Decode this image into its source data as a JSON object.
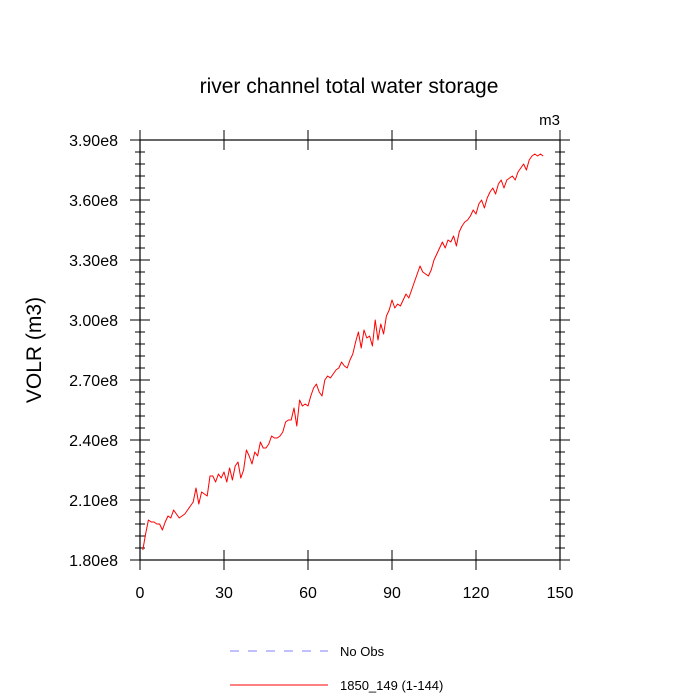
{
  "chart_data": {
    "type": "line",
    "title": "river channel total water storage",
    "units_label": "m3",
    "xlabel": "",
    "ylabel": "VOLR  (m3)",
    "xlim": [
      0,
      150
    ],
    "ylim": [
      180000000,
      390000000
    ],
    "x_ticks": [
      0,
      30,
      60,
      90,
      120,
      150
    ],
    "x_tick_labels": [
      "0",
      "30",
      "60",
      "90",
      "120",
      "150"
    ],
    "y_ticks": [
      180000000,
      210000000,
      240000000,
      270000000,
      300000000,
      330000000,
      360000000,
      390000000
    ],
    "y_tick_labels": [
      "1.80e8",
      "2.10e8",
      "2.40e8",
      "2.70e8",
      "3.00e8",
      "3.30e8",
      "3.60e8",
      "3.90e8"
    ],
    "legend_position": "bottom-center",
    "series": [
      {
        "name": "No Obs",
        "color": "#8080ff",
        "style": "dashed",
        "values": []
      },
      {
        "name": "1850_149 (1-144)",
        "color": "#ff0000",
        "style": "solid",
        "x_start": 1,
        "values": [
          185,
          193,
          200,
          199,
          199,
          198,
          198,
          195,
          199,
          202,
          201,
          205,
          203,
          201,
          202,
          203,
          205,
          207,
          209,
          216,
          208,
          214,
          213,
          212,
          222,
          222,
          219,
          223,
          221,
          224,
          219,
          226,
          220,
          227,
          229,
          221,
          225,
          235,
          232,
          228,
          234,
          232,
          239,
          236,
          236,
          238,
          242,
          241,
          241,
          242,
          244,
          249,
          250,
          250,
          256,
          247,
          260,
          257,
          258,
          257,
          262,
          266,
          268,
          264,
          262,
          270,
          272,
          271,
          273,
          275,
          276,
          279,
          277,
          276,
          280,
          283,
          289,
          294,
          286,
          295,
          291,
          292,
          287,
          300,
          290,
          298,
          293,
          302,
          305,
          310,
          306,
          308,
          307,
          310,
          313,
          311,
          315,
          319,
          323,
          327,
          324,
          323,
          322,
          325,
          330,
          333,
          336,
          339,
          336,
          340,
          339,
          342,
          337,
          344,
          347,
          349,
          350,
          352,
          355,
          353,
          358,
          360,
          356,
          361,
          364,
          366,
          363,
          368,
          370,
          366,
          370,
          371,
          372,
          370,
          374,
          376,
          378,
          375,
          380,
          382,
          383,
          382,
          383,
          382
        ]
      }
    ]
  }
}
